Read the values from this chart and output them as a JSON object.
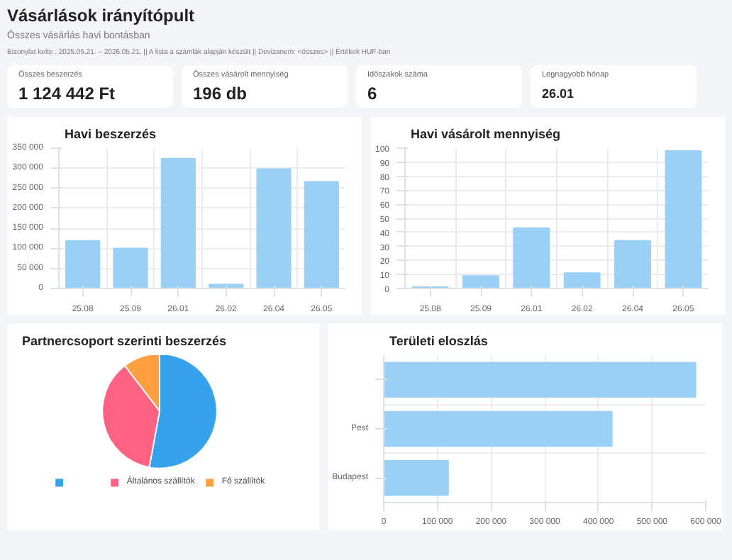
{
  "chart_data": [
    {
      "type": "other",
      "title": "Vásárlások irányítópult",
      "subtitle": "Összes vásárlás havi bontásban",
      "annotations": [
        "Bizonylat kelte : 2025.05.21. – 2026.05.21. || A lista a számlák alapján készült || Devizanem: <összes> || Értékek HUF-ban",
        "Összes beszerzés",
        "1 124 442 Ft",
        "Összes vásárolt mennyiség",
        "196 db",
        "Időszakok száma",
        "6",
        "Legnagyobb hónap",
        "26.01"
      ]
    },
    {
      "type": "bar",
      "title": "Havi beszerzés",
      "categories": [
        "25.08",
        "25.09",
        "26.01",
        "26.02",
        "26.04",
        "26.05"
      ],
      "values": [
        119000,
        100000,
        324000,
        10000,
        298000,
        266000
      ],
      "color": "#9ad0f5",
      "ylim": [
        0,
        350000
      ],
      "yticks": [
        0,
        {
          "value": 50000,
          "label": "50 000"
        },
        {
          "value": 100000,
          "label": "100 000"
        },
        {
          "value": 150000,
          "label": "150 000"
        },
        {
          "value": 200000,
          "label": "200 000"
        },
        {
          "value": 250000,
          "label": "250 000"
        },
        {
          "value": 300000,
          "label": "300 000"
        },
        {
          "value": 350000,
          "label": "350 000"
        }
      ],
      "grid": true
    },
    {
      "type": "bar",
      "title": "Havi vásárolt mennyiség",
      "categories": [
        "25.08",
        "25.09",
        "26.01",
        "26.02",
        "26.04",
        "26.05"
      ],
      "values": [
        1,
        9,
        43,
        11,
        34,
        98
      ],
      "color": "#9ad0f5",
      "ylim": [
        0,
        100
      ],
      "yticks": [
        0,
        10,
        20,
        30,
        40,
        50,
        60,
        70,
        80,
        90,
        100
      ],
      "grid": true
    },
    {
      "type": "pie",
      "title": "Partnercsoport szerinti beszerzés",
      "categories": [
        null,
        "Általános szállítók",
        "Fő szállítók"
      ],
      "values": [
        52.9,
        36.7,
        10.4
      ],
      "colors": [
        "#36a2eb",
        "#ff6384",
        "#ff9f40"
      ],
      "legend": "bottom"
    },
    {
      "type": "bar",
      "orientation": "horizontal",
      "title": "Területi eloszlás",
      "categories": [
        null,
        "Pest",
        "Budapest"
      ],
      "values": [
        581000,
        425000,
        120000
      ],
      "color": "#9ad0f5",
      "xlim": [
        0,
        600000
      ],
      "xticks": [
        0,
        {
          "value": 100000,
          "label": "100 000"
        },
        {
          "value": 200000,
          "label": "200 000"
        },
        {
          "value": 300000,
          "label": "300 000"
        },
        {
          "value": 400000,
          "label": "400 000"
        },
        {
          "value": 500000,
          "label": "500 000"
        },
        {
          "value": 600000,
          "label": "600 000"
        }
      ],
      "grid": true
    }
  ]
}
